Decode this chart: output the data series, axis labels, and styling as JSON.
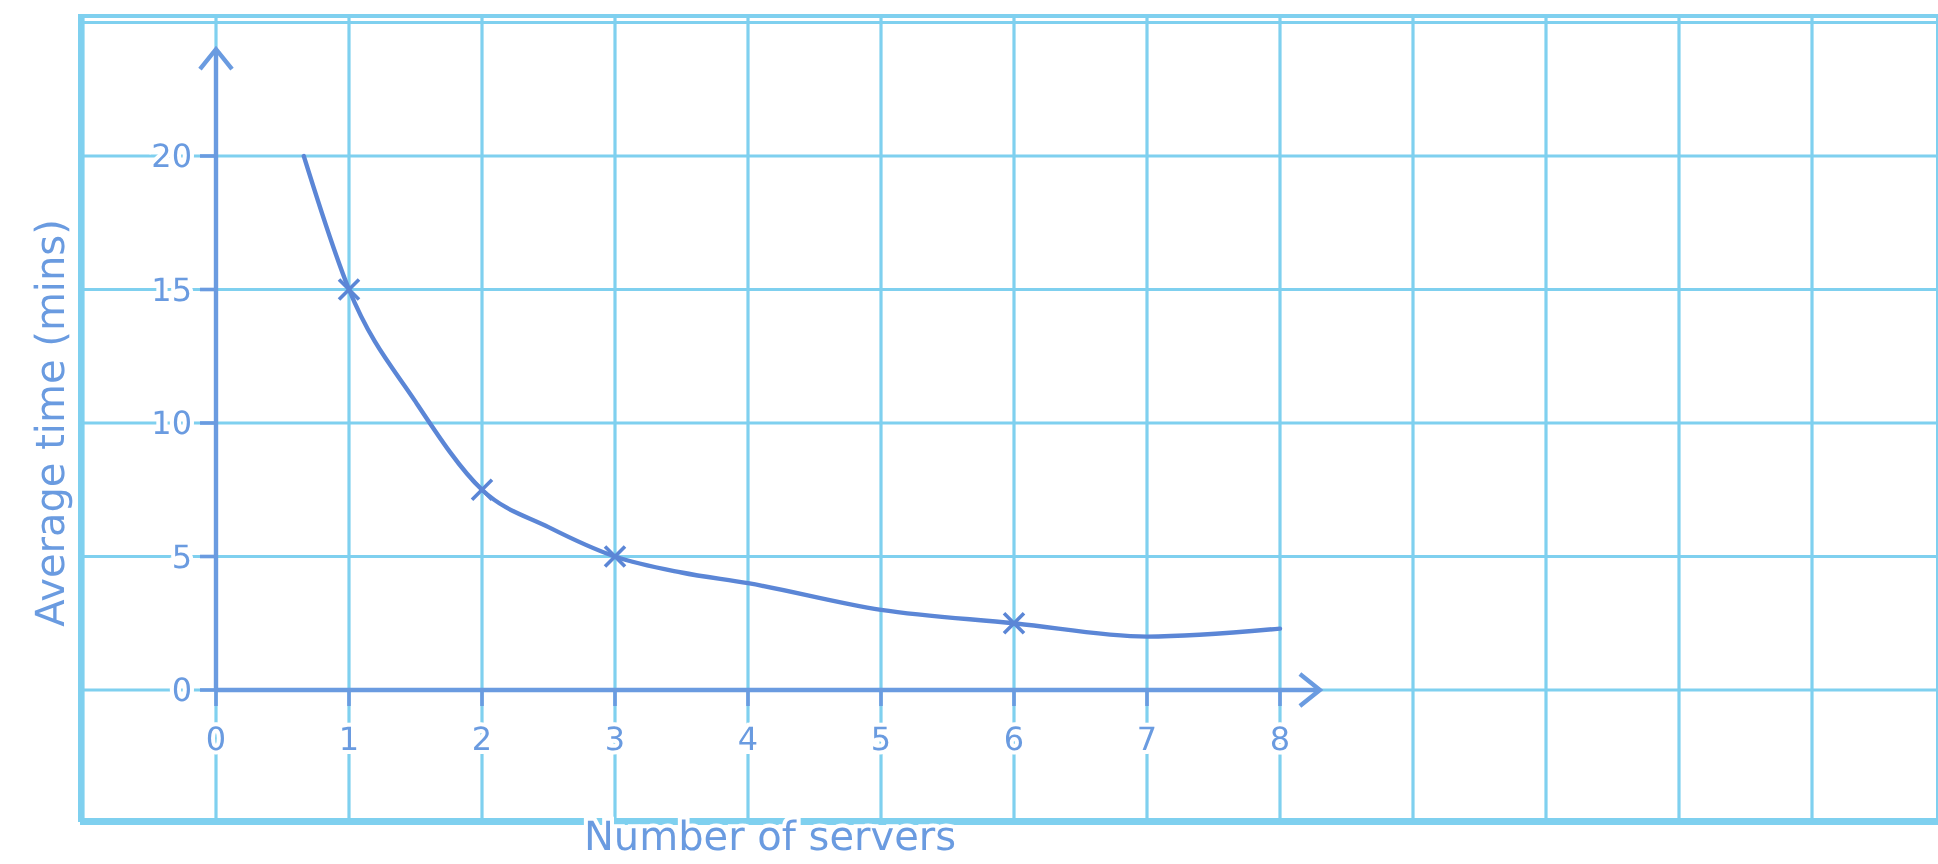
{
  "chart_data": {
    "type": "line",
    "xlabel": "Number of servers",
    "ylabel": "Average time (mins)",
    "xlim": [
      0,
      8.3
    ],
    "ylim": [
      0,
      24
    ],
    "xticks": [
      0,
      1,
      2,
      3,
      4,
      5,
      6,
      7,
      8
    ],
    "yticks": [
      0,
      5,
      10,
      15,
      20
    ],
    "grid": true,
    "series": [
      {
        "color": "#5b86d6",
        "marker": "none",
        "x": [
          0.66,
          1,
          1.5,
          2,
          2.5,
          3,
          3.5,
          4,
          5,
          6,
          7,
          8
        ],
        "values": [
          20,
          15,
          10.8,
          7.5,
          6.1,
          5,
          4.4,
          4,
          3,
          2.5,
          2,
          2.3
        ]
      },
      {
        "type": "scatter",
        "color": "#5b86d6",
        "marker": "cross",
        "x": [
          1,
          2,
          3,
          6
        ],
        "values": [
          15,
          7.5,
          5,
          2.5
        ]
      }
    ]
  }
}
